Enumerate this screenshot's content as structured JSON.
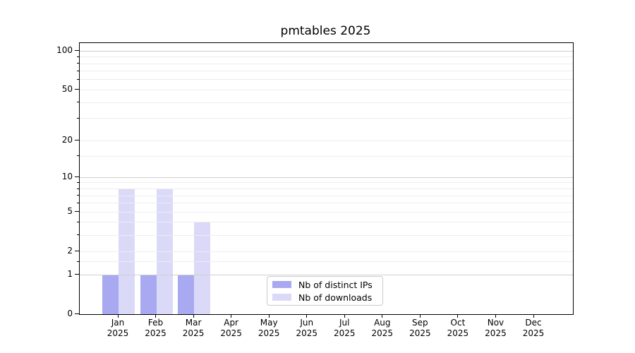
{
  "title": "pmtables 2025",
  "chart_data": {
    "type": "bar",
    "title": "pmtables 2025",
    "categories": [
      "Jan",
      "Feb",
      "Mar",
      "Apr",
      "May",
      "Jun",
      "Jul",
      "Aug",
      "Sep",
      "Oct",
      "Nov",
      "Dec"
    ],
    "year_label": "2025",
    "series": [
      {
        "name": "Nb of distinct IPs",
        "color": "#a9a9f1",
        "values": [
          1,
          1,
          1,
          0,
          0,
          0,
          0,
          0,
          0,
          0,
          0,
          0
        ]
      },
      {
        "name": "Nb of downloads",
        "color": "#dadaf8",
        "values": [
          8,
          8,
          4,
          0,
          0,
          0,
          0,
          0,
          0,
          0,
          0,
          0
        ]
      }
    ],
    "yscale": "log1p",
    "ylim": [
      0,
      115
    ],
    "yticks_labeled": [
      0,
      1,
      2,
      5,
      10,
      20,
      50,
      100
    ],
    "grid_strong": [
      1,
      10,
      100
    ],
    "grid_light": [
      1.5,
      2,
      3,
      4,
      5,
      6,
      7,
      8,
      9,
      15,
      20,
      30,
      40,
      50,
      60,
      70,
      80,
      90
    ],
    "yticks_minor": [
      1.5,
      3,
      4,
      6,
      7,
      8,
      9,
      15,
      30,
      40,
      60,
      70,
      80,
      90
    ],
    "grid": true,
    "legend_position": "lower center"
  },
  "colors": {
    "background": "#ffffff",
    "spine": "#000000",
    "text": "#000000",
    "major_grid": "#cfcfcf",
    "minor_grid": "#ededed"
  }
}
